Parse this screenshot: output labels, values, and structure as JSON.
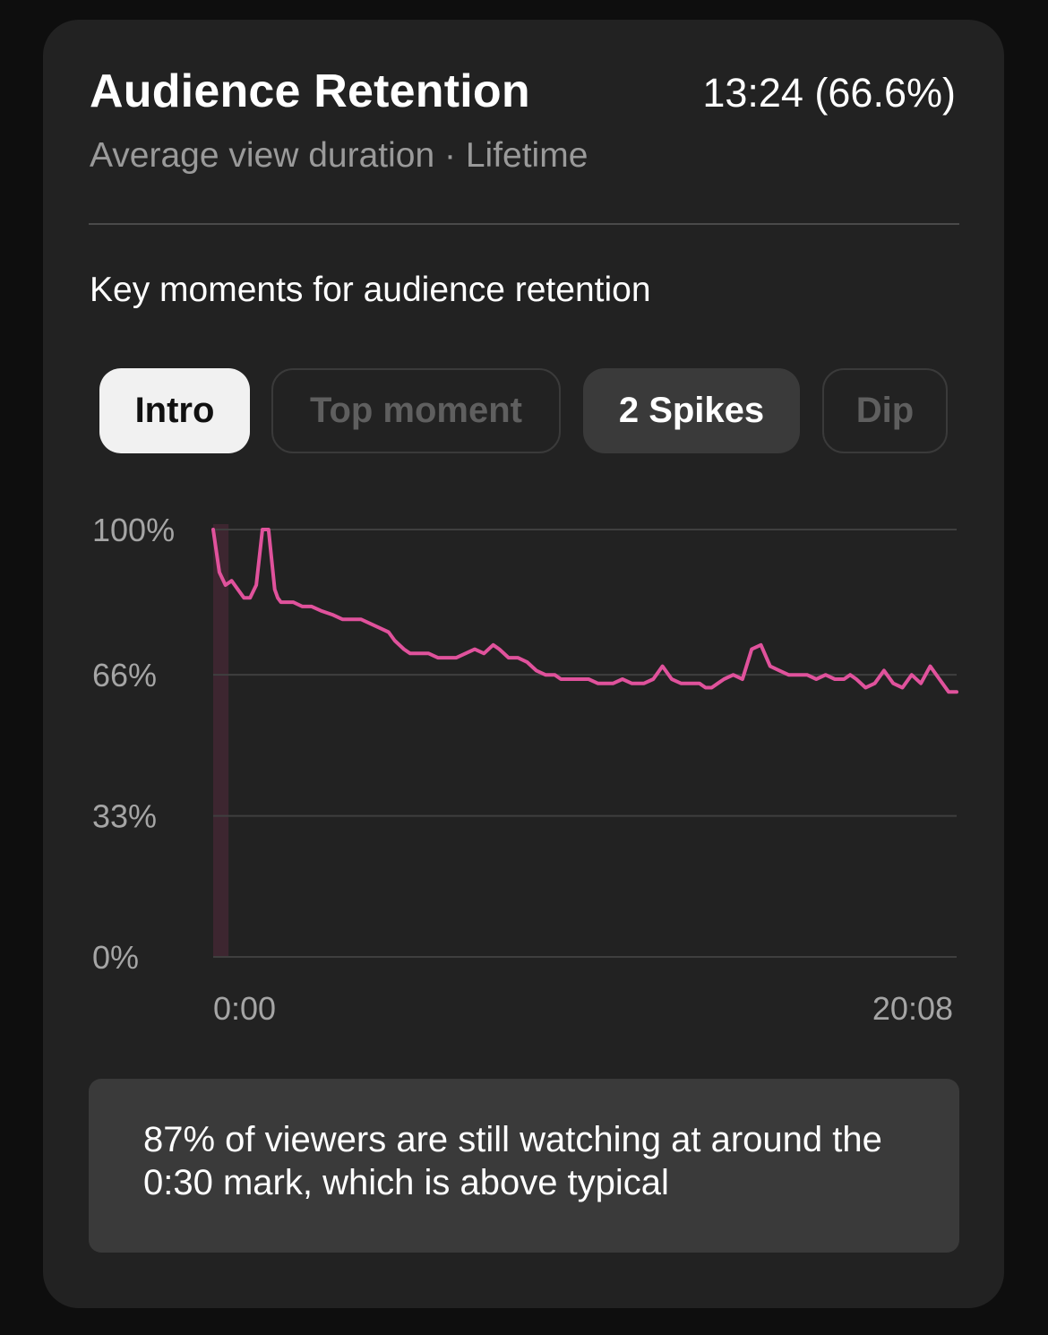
{
  "card": {
    "title": "Audience Retention",
    "headline_value": "13:24 (66.6%)",
    "subtitle": "Average view duration · Lifetime",
    "section_title": "Key moments for audience retention"
  },
  "chips": [
    {
      "label": "Intro",
      "state": "selected"
    },
    {
      "label": "Top moment",
      "state": "disabled"
    },
    {
      "label": "2 Spikes",
      "state": "enabled"
    },
    {
      "label": "Dip",
      "state": "disabled"
    }
  ],
  "insight": {
    "text": "87% of viewers are still watching at around the 0:30 mark, which is above typical"
  },
  "colors": {
    "line": "#e0529c",
    "highlight": "#3d2630",
    "grid": "#3f3f3f",
    "card_bg": "#222222"
  },
  "chart_data": {
    "type": "line",
    "x_unit": "seconds",
    "x_range": [
      0,
      1208
    ],
    "y_range": [
      0,
      100
    ],
    "y_ticks": [
      {
        "value": 100,
        "label": "100%"
      },
      {
        "value": 66,
        "label": "66%"
      },
      {
        "value": 33,
        "label": "33%"
      },
      {
        "value": 0,
        "label": "0%"
      }
    ],
    "x_ticks": [
      {
        "value": 0,
        "label": "0:00"
      },
      {
        "value": 1208,
        "label": "20:08"
      }
    ],
    "highlight_range": [
      0,
      25
    ],
    "series": [
      {
        "x": [
          0,
          10,
          20,
          30,
          40,
          50,
          55,
          60,
          70,
          80,
          90,
          100,
          105,
          110,
          120,
          130,
          145,
          160,
          175,
          195,
          210,
          225,
          240,
          255,
          270,
          285,
          295,
          310,
          320,
          335,
          350,
          365,
          380,
          395,
          410,
          425,
          440,
          455,
          465,
          480,
          495,
          510,
          525,
          540,
          555,
          565,
          575,
          590,
          600,
          610,
          625,
          640,
          650,
          665,
          680,
          690,
          700,
          715,
          730,
          745,
          760,
          775,
          790,
          800,
          810,
          820,
          830,
          845,
          860,
          875,
          890,
          905,
          920,
          935,
          950,
          965,
          980,
          995,
          1010,
          1025,
          1035,
          1045,
          1060,
          1075,
          1090,
          1105,
          1120,
          1135,
          1150,
          1165,
          1180,
          1195,
          1208
        ],
        "y": [
          100,
          90,
          87,
          88,
          86,
          84,
          84,
          84,
          87,
          100,
          100,
          86,
          84,
          83,
          83,
          83,
          82,
          82,
          81,
          80,
          79,
          79,
          79,
          78,
          77,
          76,
          74,
          72,
          71,
          71,
          71,
          70,
          70,
          70,
          71,
          72,
          71,
          73,
          72,
          70,
          70,
          69,
          67,
          66,
          66,
          65,
          65,
          65,
          65,
          65,
          64,
          64,
          64,
          65,
          64,
          64,
          64,
          65,
          68,
          65,
          64,
          64,
          64,
          63,
          63,
          64,
          65,
          66,
          65,
          72,
          73,
          68,
          67,
          66,
          66,
          66,
          65,
          66,
          65,
          65,
          66,
          65,
          63,
          64,
          67,
          64,
          63,
          66,
          64,
          68,
          65,
          62,
          62
        ]
      }
    ]
  }
}
